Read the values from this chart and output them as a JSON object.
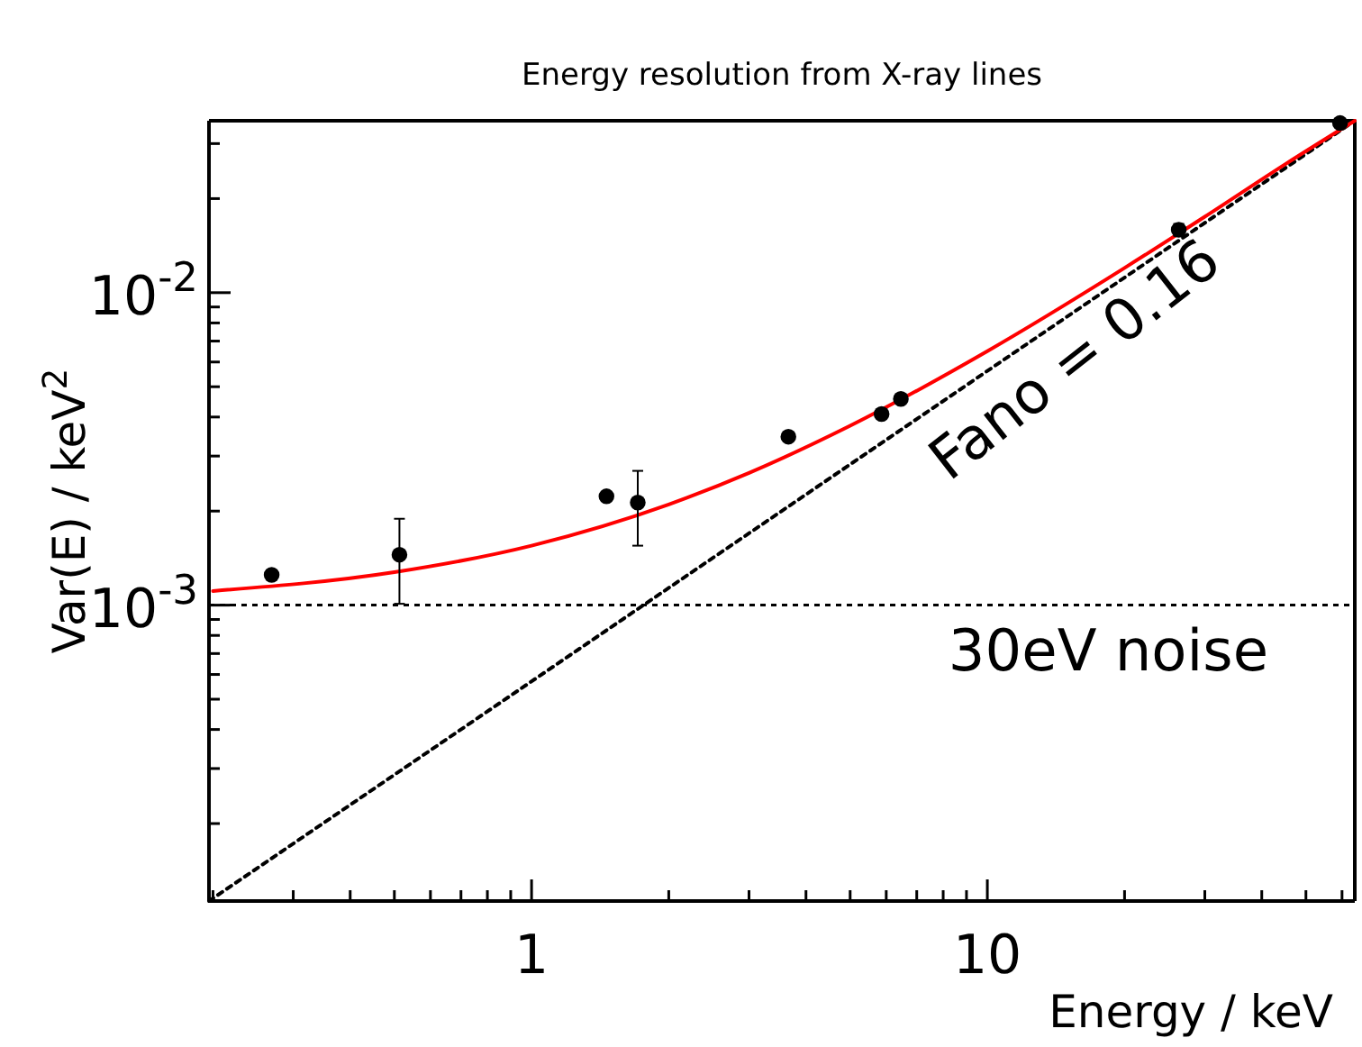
{
  "chart_data": {
    "type": "scatter",
    "title": "Energy resolution from X-ray lines",
    "xlabel": "Energy / keV",
    "ylabel": "Var(E) / keV$^{2}$",
    "log": "xy",
    "grid": false,
    "marker": "circle",
    "xlim": [
      0.196,
      64
    ],
    "ylim": [
      0.000113,
      0.0355
    ],
    "xticks": [
      {
        "value": 0.2,
        "label": null
      },
      {
        "value": 0.3,
        "label": null
      },
      {
        "value": 0.4,
        "label": null
      },
      {
        "value": 0.5,
        "label": null
      },
      {
        "value": 0.6,
        "label": null
      },
      {
        "value": 0.7,
        "label": null
      },
      {
        "value": 0.8,
        "label": null
      },
      {
        "value": 0.9,
        "label": null
      },
      1,
      {
        "value": 2,
        "label": null
      },
      {
        "value": 3,
        "label": null
      },
      {
        "value": 4,
        "label": null
      },
      {
        "value": 5,
        "label": null
      },
      {
        "value": 6,
        "label": null
      },
      {
        "value": 7,
        "label": null
      },
      {
        "value": 8,
        "label": null
      },
      {
        "value": 9,
        "label": null
      },
      10,
      {
        "value": 20,
        "label": null
      },
      {
        "value": 30,
        "label": null
      },
      {
        "value": 40,
        "label": null
      },
      {
        "value": 50,
        "label": null
      },
      {
        "value": 60,
        "label": null
      }
    ],
    "yticks": [
      {
        "value": 0.0002,
        "label": null
      },
      {
        "value": 0.0003,
        "label": null
      },
      {
        "value": 0.0004,
        "label": null
      },
      {
        "value": 0.0005,
        "label": null
      },
      {
        "value": 0.0006,
        "label": null
      },
      {
        "value": 0.0007,
        "label": null
      },
      {
        "value": 0.0008,
        "label": null
      },
      {
        "value": 0.0009,
        "label": null
      },
      {
        "value": 0.001,
        "label": "10$^{-3}$"
      },
      {
        "value": 0.002,
        "label": null
      },
      {
        "value": 0.003,
        "label": null
      },
      {
        "value": 0.004,
        "label": null
      },
      {
        "value": 0.005,
        "label": null
      },
      {
        "value": 0.006,
        "label": null
      },
      {
        "value": 0.007,
        "label": null
      },
      {
        "value": 0.008,
        "label": null
      },
      {
        "value": 0.009,
        "label": null
      },
      {
        "value": 0.01,
        "label": "10$^{-2}$"
      },
      {
        "value": 0.02,
        "label": null
      },
      {
        "value": 0.03,
        "label": null
      }
    ],
    "ref_lines": [
      {
        "axis": "y",
        "value": 0.001,
        "label": "30eV noise",
        "color": "#000000",
        "line_style": "dotted"
      }
    ],
    "annotations": [
      "Fano = 0.16"
    ],
    "series": [
      {
        "type": "line",
        "color": "#000000",
        "line_style": "dotted",
        "marker": "none",
        "x": [
          0.196,
          64
        ],
        "values": [
          0.000113,
          0.0355
        ]
      },
      {
        "type": "line",
        "color": "#ff0000",
        "line_style": "solid",
        "marker": "none",
        "x": [
          0.2,
          0.5,
          1,
          2,
          3,
          5,
          10,
          20,
          30,
          45,
          64
        ],
        "values": [
          0.00111,
          0.001275,
          0.00155,
          0.0021,
          0.00265,
          0.00375,
          0.0065,
          0.012,
          0.0175,
          0.02575,
          0.0355
        ]
      },
      {
        "color": "#000000",
        "x": [
          0.269,
          0.513,
          1.46,
          1.71,
          3.66,
          5.86,
          6.46,
          26.3,
          59.4
        ],
        "values": [
          0.00125,
          0.00145,
          0.00223,
          0.00213,
          0.00346,
          0.00409,
          0.00457,
          0.0159,
          0.0349
        ],
        "errors": [
          null,
          [
            0.00101,
            0.00189
          ],
          null,
          [
            0.00155,
            0.00269
          ],
          null,
          null,
          null,
          [
            0.0152,
            0.0166
          ],
          null
        ]
      }
    ]
  }
}
